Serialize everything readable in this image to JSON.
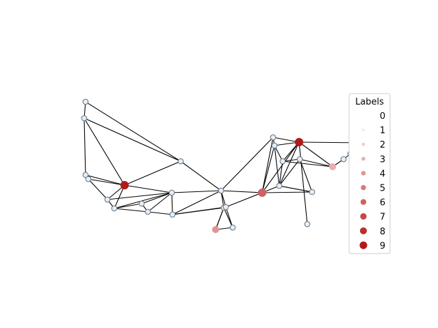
{
  "chart_data": {
    "type": "network-graph",
    "legend": {
      "title": "Labels",
      "placement": "right",
      "entries": [
        {
          "label": "0",
          "color": "#ffffff"
        },
        {
          "label": "1",
          "color": "#fbe4e4"
        },
        {
          "label": "2",
          "color": "#f3c8c8"
        },
        {
          "label": "3",
          "color": "#ebaeae"
        },
        {
          "label": "4",
          "color": "#e29494"
        },
        {
          "label": "5",
          "color": "#d97a7a"
        },
        {
          "label": "6",
          "color": "#cf6161"
        },
        {
          "label": "7",
          "color": "#c54848"
        },
        {
          "label": "8",
          "color": "#bb3030"
        },
        {
          "label": "9",
          "color": "#b31b1b"
        }
      ]
    },
    "node_style": {
      "default_fill": "#e8eef3",
      "stroke": "#6f8090"
    },
    "edge_style": {
      "color": "#000000"
    },
    "nodes": [
      {
        "id": "n0",
        "label": 0
      },
      {
        "id": "n1",
        "label": 0
      },
      {
        "id": "n2",
        "label": 0
      },
      {
        "id": "n3",
        "label": 0
      },
      {
        "id": "n4",
        "label": 9
      },
      {
        "id": "n5",
        "label": 0
      },
      {
        "id": "n6",
        "label": 0
      },
      {
        "id": "n7",
        "label": 0
      },
      {
        "id": "n8",
        "label": 0
      },
      {
        "id": "n9",
        "label": 0
      },
      {
        "id": "n10",
        "label": 0
      },
      {
        "id": "n11",
        "label": 0
      },
      {
        "id": "n12",
        "label": 0
      },
      {
        "id": "n13",
        "label": 0
      },
      {
        "id": "n14",
        "label": 0
      },
      {
        "id": "n15",
        "label": 4
      },
      {
        "id": "n16",
        "label": 0
      },
      {
        "id": "n17",
        "label": 6
      },
      {
        "id": "n18",
        "label": 0
      },
      {
        "id": "n19",
        "label": 0
      },
      {
        "id": "n20",
        "label": 0
      },
      {
        "id": "n21",
        "label": 9
      },
      {
        "id": "n22",
        "label": 0
      },
      {
        "id": "n23",
        "label": 0
      },
      {
        "id": "n24",
        "label": 0
      },
      {
        "id": "n25",
        "label": 0
      },
      {
        "id": "n26",
        "label": 3
      },
      {
        "id": "n27",
        "label": 0
      },
      {
        "id": "n28",
        "label": 0
      },
      {
        "id": "n29",
        "label": 1
      }
    ],
    "edges": [
      [
        "n0",
        "n1"
      ],
      [
        "n0",
        "n5"
      ],
      [
        "n1",
        "n5"
      ],
      [
        "n1",
        "n2"
      ],
      [
        "n1",
        "n4"
      ],
      [
        "n2",
        "n3"
      ],
      [
        "n2",
        "n4"
      ],
      [
        "n3",
        "n6"
      ],
      [
        "n3",
        "n4"
      ],
      [
        "n4",
        "n6"
      ],
      [
        "n4",
        "n7"
      ],
      [
        "n4",
        "n10"
      ],
      [
        "n4",
        "n5"
      ],
      [
        "n6",
        "n7"
      ],
      [
        "n6",
        "n10"
      ],
      [
        "n7",
        "n8"
      ],
      [
        "n7",
        "n10"
      ],
      [
        "n7",
        "n9"
      ],
      [
        "n8",
        "n10"
      ],
      [
        "n8",
        "n9"
      ],
      [
        "n9",
        "n10"
      ],
      [
        "n9",
        "n11"
      ],
      [
        "n10",
        "n11"
      ],
      [
        "n5",
        "n12"
      ],
      [
        "n10",
        "n12"
      ],
      [
        "n11",
        "n12"
      ],
      [
        "n11",
        "n13"
      ],
      [
        "n11",
        "n14"
      ],
      [
        "n12",
        "n13"
      ],
      [
        "n12",
        "n14"
      ],
      [
        "n13",
        "n14"
      ],
      [
        "n13",
        "n15"
      ],
      [
        "n13",
        "n16"
      ],
      [
        "n14",
        "n16"
      ],
      [
        "n15",
        "n16"
      ],
      [
        "n15",
        "n13"
      ],
      [
        "n12",
        "n18"
      ],
      [
        "n12",
        "n17"
      ],
      [
        "n14",
        "n17"
      ],
      [
        "n17",
        "n18"
      ],
      [
        "n17",
        "n19"
      ],
      [
        "n17",
        "n20"
      ],
      [
        "n17",
        "n24"
      ],
      [
        "n17",
        "n21"
      ],
      [
        "n18",
        "n19"
      ],
      [
        "n18",
        "n21"
      ],
      [
        "n19",
        "n20"
      ],
      [
        "n19",
        "n21"
      ],
      [
        "n19",
        "n22"
      ],
      [
        "n21",
        "n20"
      ],
      [
        "n21",
        "n22"
      ],
      [
        "n21",
        "n26"
      ],
      [
        "n21",
        "n25"
      ],
      [
        "n22",
        "n26"
      ],
      [
        "n22",
        "n23"
      ],
      [
        "n20",
        "n22"
      ],
      [
        "n20",
        "n23"
      ],
      [
        "n20",
        "n24"
      ],
      [
        "n23",
        "n26"
      ],
      [
        "n23",
        "n24"
      ],
      [
        "n26",
        "n27"
      ],
      [
        "n27",
        "n28"
      ],
      [
        "n28",
        "n29"
      ],
      [
        "n21",
        "n29"
      ],
      [
        "n24",
        "n20"
      ]
    ]
  }
}
